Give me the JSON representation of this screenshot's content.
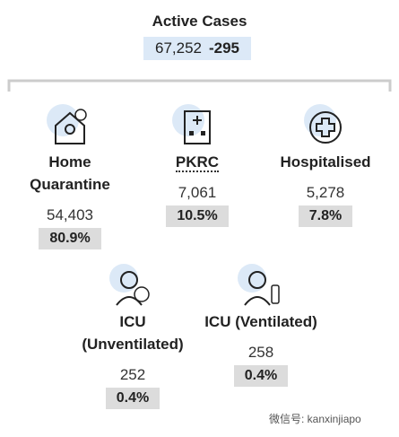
{
  "header": {
    "title": "Active Cases",
    "total": "67,252",
    "change": "-295"
  },
  "items": [
    {
      "label": "Home Quarantine",
      "value": "54,403",
      "percent": "80.9%"
    },
    {
      "label": "PKRC",
      "value": "7,061",
      "percent": "10.5%"
    },
    {
      "label": "Hospitalised",
      "value": "5,278",
      "percent": "7.8%"
    },
    {
      "label": "ICU (Unventilated)",
      "value": "252",
      "percent": "0.4%"
    },
    {
      "label": "ICU (Ventilated)",
      "value": "258",
      "percent": "0.4%"
    }
  ],
  "watermark": "微信号: kanxinjiapo"
}
